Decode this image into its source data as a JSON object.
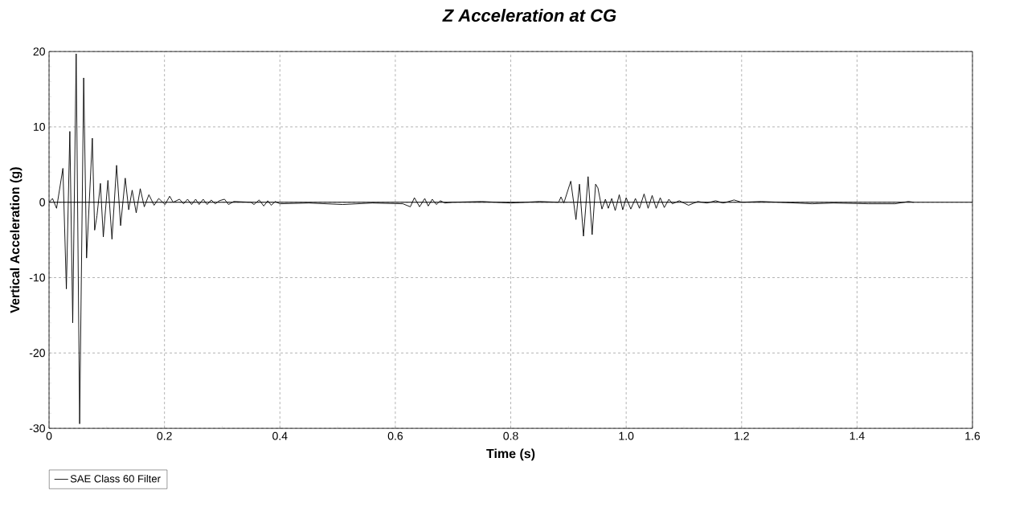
{
  "chart_data": {
    "type": "line",
    "title": "Z Acceleration at CG",
    "xlabel": "Time (s)",
    "ylabel": "Vertical Acceleration (g)",
    "xlim": [
      0,
      1.6
    ],
    "ylim": [
      -30,
      20
    ],
    "xticks": [
      {
        "value": 0,
        "label": "0"
      },
      0.2,
      0.4,
      0.6,
      0.8,
      {
        "value": 1.0,
        "label": "1.0"
      },
      1.2,
      1.4,
      1.6
    ],
    "yticks": [
      -30,
      -20,
      -10,
      0,
      10,
      20
    ],
    "grid": true,
    "legend": "bottom left",
    "line_style": "solid",
    "marker": "none",
    "ref_lines": [
      {
        "axis": "y",
        "value": 0,
        "color": "#000000",
        "line_style": "solid"
      }
    ],
    "series": [
      {
        "name": "SAE Class 60 Filter",
        "color": "#000000",
        "x": [
          0,
          0.006,
          0.013,
          0.024,
          0.03,
          0.036,
          0.041,
          0.047,
          0.053,
          0.06,
          0.065,
          0.075,
          0.079,
          0.083,
          0.089,
          0.094,
          0.102,
          0.109,
          0.117,
          0.124,
          0.132,
          0.138,
          0.144,
          0.151,
          0.158,
          0.165,
          0.173,
          0.182,
          0.19,
          0.201,
          0.209,
          0.215,
          0.226,
          0.233,
          0.24,
          0.247,
          0.254,
          0.26,
          0.267,
          0.274,
          0.281,
          0.288,
          0.295,
          0.304,
          0.311,
          0.32,
          0.35,
          0.355,
          0.364,
          0.372,
          0.379,
          0.385,
          0.392,
          0.4,
          0.45,
          0.509,
          0.56,
          0.613,
          0.626,
          0.633,
          0.642,
          0.651,
          0.657,
          0.664,
          0.671,
          0.678,
          0.686,
          0.698,
          0.75,
          0.8,
          0.85,
          0.883,
          0.887,
          0.892,
          0.904,
          0.913,
          0.919,
          0.926,
          0.934,
          0.941,
          0.947,
          0.951,
          0.958,
          0.964,
          0.969,
          0.975,
          0.981,
          0.988,
          0.994,
          1.0,
          1.008,
          1.016,
          1.023,
          1.031,
          1.038,
          1.045,
          1.052,
          1.059,
          1.066,
          1.074,
          1.08,
          1.092,
          1.108,
          1.124,
          1.14,
          1.155,
          1.168,
          1.187,
          1.2,
          1.234,
          1.266,
          1.322,
          1.359,
          1.42,
          1.466,
          1.489,
          1.498
        ],
        "values": [
          0,
          0.5,
          -0.8,
          4.5,
          -11.5,
          9.4,
          -16,
          19.7,
          -29.4,
          16.5,
          -7.4,
          8.5,
          -3.7,
          -1.8,
          2.5,
          -4.6,
          2.9,
          -4.9,
          4.9,
          -3.1,
          3.2,
          -1.0,
          1.6,
          -1.4,
          1.8,
          -0.6,
          1.0,
          -0.4,
          0.5,
          -0.3,
          0.8,
          0,
          0.4,
          -0.2,
          0.4,
          -0.3,
          0.4,
          -0.3,
          0.4,
          -0.3,
          0.3,
          -0.2,
          0.2,
          0.4,
          -0.3,
          0.1,
          0,
          -0.3,
          0.3,
          -0.5,
          0.2,
          -0.4,
          0.1,
          -0.2,
          -0.1,
          -0.3,
          -0.1,
          -0.2,
          -0.6,
          0.6,
          -0.6,
          0.5,
          -0.5,
          0.4,
          -0.3,
          0.2,
          -0.1,
          0,
          0.1,
          -0.1,
          0.1,
          0,
          0.7,
          -0.1,
          2.8,
          -2.3,
          2.4,
          -4.5,
          3.4,
          -4.3,
          2.4,
          1.9,
          -0.9,
          0.4,
          -0.8,
          0.5,
          -1.1,
          1.0,
          -1.0,
          0.6,
          -0.9,
          0.5,
          -0.8,
          1.1,
          -0.8,
          0.9,
          -0.8,
          0.6,
          -0.7,
          0.4,
          -0.2,
          0.2,
          -0.4,
          0.1,
          -0.1,
          0.2,
          -0.1,
          0.3,
          0,
          0.1,
          0,
          -0.2,
          -0.1,
          -0.2,
          -0.2,
          0.1,
          0
        ]
      }
    ]
  }
}
